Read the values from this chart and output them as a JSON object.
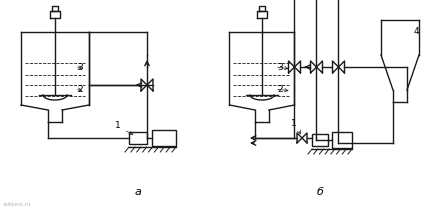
{
  "bg_color": "#ffffff",
  "line_color": "#1a1a1a",
  "label_a": "а",
  "label_b": "б",
  "label_1": "1",
  "label_2": "2",
  "label_3": "3",
  "label_4": "4",
  "watermark": "autbest.ru"
}
